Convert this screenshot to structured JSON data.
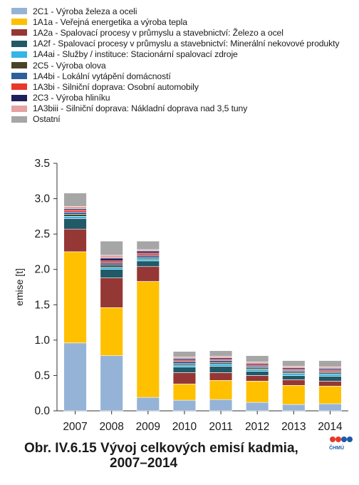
{
  "chart_data": {
    "type": "bar",
    "stacked": true,
    "categories": [
      "2007",
      "2008",
      "2009",
      "2010",
      "2011",
      "2012",
      "2013",
      "2014"
    ],
    "ylabel": "emise [t]",
    "ylim": [
      0,
      3.5
    ],
    "yticks": [
      "0.0",
      "0.5",
      "1.0",
      "1.5",
      "2.0",
      "2.5",
      "3.0",
      "3.5"
    ],
    "grid": false,
    "legend_position": "top",
    "series": [
      {
        "name": "2C1 - Výroba železa a oceli",
        "color": "#95b3d7",
        "values": [
          0.96,
          0.78,
          0.19,
          0.15,
          0.16,
          0.12,
          0.09,
          0.1
        ]
      },
      {
        "name": "1A1a - Veřejná energetika a výroba tepla",
        "color": "#ffc000",
        "values": [
          1.29,
          0.68,
          1.64,
          0.23,
          0.27,
          0.3,
          0.27,
          0.25
        ]
      },
      {
        "name": "1A2a - Spalovací procesy v průmyslu a stavebnictví: Železo a ocel",
        "color": "#953735",
        "values": [
          0.32,
          0.42,
          0.21,
          0.16,
          0.11,
          0.08,
          0.08,
          0.07
        ]
      },
      {
        "name": "1A2f - Spalovací procesy v průmyslu a stavebnictví: Minerální nekovové produkty",
        "color": "#215967",
        "values": [
          0.15,
          0.12,
          0.08,
          0.08,
          0.09,
          0.06,
          0.06,
          0.07
        ]
      },
      {
        "name": "1A4ai - Služby / instituce: Stacionární spalovací zdroje",
        "color": "#33b5e5",
        "values": [
          0.03,
          0.03,
          0.03,
          0.03,
          0.03,
          0.03,
          0.03,
          0.03
        ]
      },
      {
        "name": "2C5 - Výroba olova",
        "color": "#4a4326",
        "values": [
          0.03,
          0.03,
          0.02,
          0.02,
          0.02,
          0.02,
          0.02,
          0.02
        ]
      },
      {
        "name": "1A4bi - Lokální vytápění domácností",
        "color": "#2e5e9c",
        "values": [
          0.03,
          0.03,
          0.03,
          0.03,
          0.03,
          0.02,
          0.02,
          0.02
        ]
      },
      {
        "name": "1A3bi - Silniční doprava: Osobní automobily",
        "color": "#e8382a",
        "values": [
          0.03,
          0.03,
          0.03,
          0.02,
          0.02,
          0.02,
          0.02,
          0.02
        ]
      },
      {
        "name": "2C3 - Výroba hliníku",
        "color": "#1f1f5c",
        "values": [
          0.02,
          0.04,
          0.03,
          0.02,
          0.02,
          0.02,
          0.02,
          0.02
        ]
      },
      {
        "name": "1A3biii - Silniční doprava: Nákladní doprava nad 3,5 tuny",
        "color": "#e6a1a1",
        "values": [
          0.03,
          0.04,
          0.02,
          0.02,
          0.02,
          0.02,
          0.02,
          0.02
        ]
      },
      {
        "name": "Ostatní",
        "color": "#a6a6a6",
        "values": [
          0.19,
          0.2,
          0.12,
          0.08,
          0.08,
          0.09,
          0.08,
          0.09
        ]
      }
    ]
  },
  "caption": {
    "line1": "Obr. IV.6.15  Vývoj celkových emisí kadmia,",
    "line2": "2007–2014"
  },
  "logo": {
    "text": "ČHMÚ",
    "colors": [
      "#e8382a",
      "#1e5aa8"
    ]
  }
}
